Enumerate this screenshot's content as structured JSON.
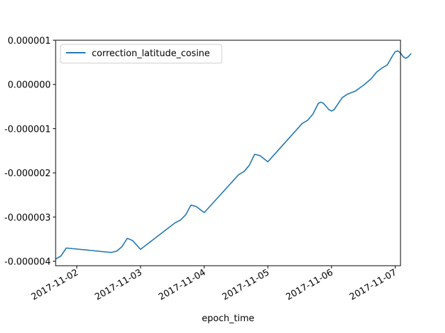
{
  "chart_data": {
    "type": "line",
    "title": "",
    "xlabel": "epoch_time",
    "ylabel": "",
    "grid": false,
    "legend_position": "upper-left",
    "line_color": "#1f77b4",
    "x_ticks": [
      "2017-11-02",
      "2017-11-03",
      "2017-11-04",
      "2017-11-05",
      "2017-11-06",
      "2017-11-07"
    ],
    "y_ticks": [
      "0.000001",
      "0.000000",
      "-0.000001",
      "-0.000002",
      "-0.000003",
      "-0.000004"
    ],
    "xlim": [
      "2017-11-01 16:00",
      "2017-11-07 02:00"
    ],
    "ylim": [
      -4.1e-06,
      1e-06
    ],
    "series": [
      {
        "name": "correction_latitude_cosine",
        "points": [
          [
            "2017-11-01 16:00",
            -3.95e-06
          ],
          [
            "2017-11-01 18:00",
            -3.88e-06
          ],
          [
            "2017-11-01 20:00",
            -3.7e-06
          ],
          [
            "2017-11-02 13:00",
            -3.8e-06
          ],
          [
            "2017-11-02 15:00",
            -3.77e-06
          ],
          [
            "2017-11-02 17:00",
            -3.67e-06
          ],
          [
            "2017-11-02 19:00",
            -3.48e-06
          ],
          [
            "2017-11-02 21:00",
            -3.53e-06
          ],
          [
            "2017-11-03 00:00",
            -3.73e-06
          ],
          [
            "2017-11-03 13:00",
            -3.13e-06
          ],
          [
            "2017-11-03 15:00",
            -3.07e-06
          ],
          [
            "2017-11-03 17:00",
            -2.95e-06
          ],
          [
            "2017-11-03 19:00",
            -2.73e-06
          ],
          [
            "2017-11-03 21:00",
            -2.76e-06
          ],
          [
            "2017-11-04 00:00",
            -2.9e-06
          ],
          [
            "2017-11-04 13:00",
            -2.04e-06
          ],
          [
            "2017-11-04 15:00",
            -1.97e-06
          ],
          [
            "2017-11-04 17:00",
            -1.83e-06
          ],
          [
            "2017-11-04 19:00",
            -1.58e-06
          ],
          [
            "2017-11-04 21:00",
            -1.61e-06
          ],
          [
            "2017-11-05 00:00",
            -1.75e-06
          ],
          [
            "2017-11-05 13:00",
            -8.8e-07
          ],
          [
            "2017-11-05 15:00",
            -8.1e-07
          ],
          [
            "2017-11-05 17:00",
            -6.7e-07
          ],
          [
            "2017-11-05 19:00",
            -4.3e-07
          ],
          [
            "2017-11-05 20:00",
            -4e-07
          ],
          [
            "2017-11-05 21:00",
            -4.3e-07
          ],
          [
            "2017-11-05 23:00",
            -5.7e-07
          ],
          [
            "2017-11-06 00:00",
            -6e-07
          ],
          [
            "2017-11-06 01:00",
            -5.7e-07
          ],
          [
            "2017-11-06 02:00",
            -4.8e-07
          ],
          [
            "2017-11-06 04:00",
            -3e-07
          ],
          [
            "2017-11-06 06:00",
            -2.2e-07
          ],
          [
            "2017-11-06 09:00",
            -1.5e-07
          ],
          [
            "2017-11-06 12:00",
            -2e-08
          ],
          [
            "2017-11-06 15:00",
            1.3e-07
          ],
          [
            "2017-11-06 17:00",
            2.8e-07
          ],
          [
            "2017-11-06 19:00",
            3.7e-07
          ],
          [
            "2017-11-06 21:00",
            4.4e-07
          ],
          [
            "2017-11-06 23:00",
            6.5e-07
          ],
          [
            "2017-11-07 00:00",
            7.4e-07
          ],
          [
            "2017-11-07 01:00",
            7.6e-07
          ],
          [
            "2017-11-07 02:00",
            7.1e-07
          ],
          [
            "2017-11-07 03:00",
            6.3e-07
          ],
          [
            "2017-11-07 04:00",
            5.9e-07
          ],
          [
            "2017-11-07 05:00",
            6.3e-07
          ],
          [
            "2017-11-07 06:00",
            7e-07
          ]
        ]
      }
    ]
  }
}
